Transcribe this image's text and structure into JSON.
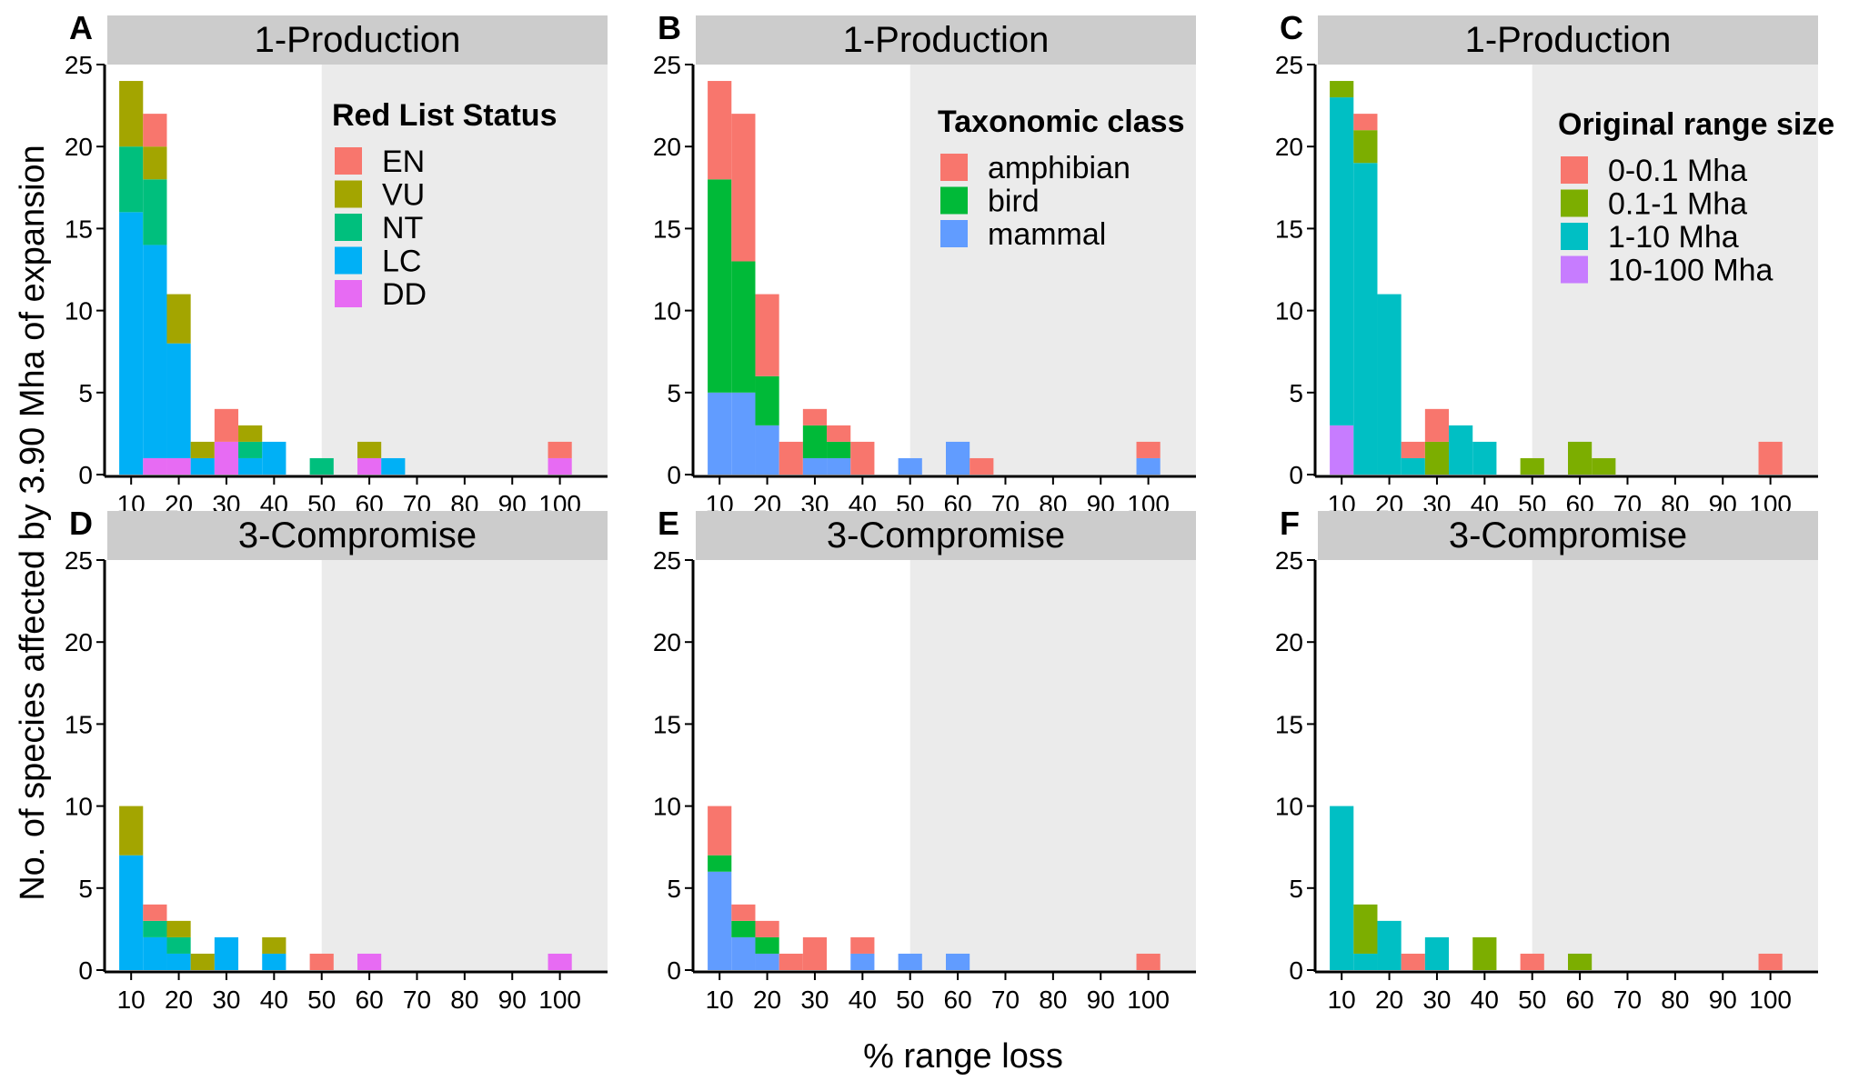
{
  "chart_data": {
    "type": "bar",
    "stacked": true,
    "xlabel": "% range loss",
    "ylabel": "No. of species affected by 3.90 Mha of expansion",
    "x_bins": [
      10,
      15,
      20,
      25,
      30,
      35,
      40,
      45,
      50,
      55,
      60,
      65,
      70,
      75,
      80,
      85,
      90,
      95,
      100
    ],
    "bin_width": 5,
    "xlim": [
      5,
      110
    ],
    "ylim": [
      0,
      25
    ],
    "x_ticks": [
      10,
      20,
      30,
      40,
      50,
      60,
      70,
      80,
      90,
      100
    ],
    "y_ticks": [
      0,
      5,
      10,
      15,
      20,
      25
    ],
    "shaded_region": {
      "from": 50,
      "to": 110,
      "color": "#ebebeb"
    },
    "legends": [
      {
        "title": "Red List Status",
        "items": [
          {
            "name": "EN",
            "color": "#F8766D"
          },
          {
            "name": "VU",
            "color": "#A3A500"
          },
          {
            "name": "NT",
            "color": "#00BF7D"
          },
          {
            "name": "LC",
            "color": "#00B0F6"
          },
          {
            "name": "DD",
            "color": "#E76BF3"
          }
        ]
      },
      {
        "title": "Taxonomic class",
        "items": [
          {
            "name": "amphibian",
            "color": "#F8766D"
          },
          {
            "name": "bird",
            "color": "#00BA38"
          },
          {
            "name": "mammal",
            "color": "#619CFF"
          }
        ]
      },
      {
        "title": "Original range size",
        "items": [
          {
            "name": "0-0.1 Mha",
            "color": "#F8766D"
          },
          {
            "name": "0.1-1 Mha",
            "color": "#7CAE00"
          },
          {
            "name": "1-10 Mha",
            "color": "#00BFC4"
          },
          {
            "name": "10-100 Mha",
            "color": "#C77CFF"
          }
        ]
      }
    ],
    "panels": [
      {
        "letter": "A",
        "strip": "1-Production",
        "legend": 0,
        "series": [
          {
            "name": "DD",
            "values": [
              0,
              1,
              1,
              0,
              2,
              0,
              0,
              0,
              0,
              0,
              1,
              0,
              0,
              0,
              0,
              0,
              0,
              0,
              1
            ]
          },
          {
            "name": "LC",
            "values": [
              16,
              13,
              7,
              1,
              0,
              1,
              2,
              0,
              0,
              0,
              0,
              1,
              0,
              0,
              0,
              0,
              0,
              0,
              0
            ]
          },
          {
            "name": "NT",
            "values": [
              4,
              4,
              0,
              0,
              0,
              1,
              0,
              0,
              1,
              0,
              0,
              0,
              0,
              0,
              0,
              0,
              0,
              0,
              0
            ]
          },
          {
            "name": "VU",
            "values": [
              4,
              2,
              3,
              1,
              0,
              1,
              0,
              0,
              0,
              0,
              1,
              0,
              0,
              0,
              0,
              0,
              0,
              0,
              0
            ]
          },
          {
            "name": "EN",
            "values": [
              0,
              2,
              0,
              0,
              2,
              0,
              0,
              0,
              0,
              0,
              0,
              0,
              0,
              0,
              0,
              0,
              0,
              0,
              1
            ]
          }
        ]
      },
      {
        "letter": "B",
        "strip": "1-Production",
        "legend": 1,
        "series": [
          {
            "name": "mammal",
            "values": [
              5,
              5,
              3,
              0,
              1,
              1,
              0,
              0,
              1,
              0,
              2,
              0,
              0,
              0,
              0,
              0,
              0,
              0,
              1
            ]
          },
          {
            "name": "bird",
            "values": [
              13,
              8,
              3,
              0,
              2,
              1,
              0,
              0,
              0,
              0,
              0,
              0,
              0,
              0,
              0,
              0,
              0,
              0,
              0
            ]
          },
          {
            "name": "amphibian",
            "values": [
              6,
              9,
              5,
              2,
              1,
              1,
              2,
              0,
              0,
              0,
              0,
              1,
              0,
              0,
              0,
              0,
              0,
              0,
              1
            ]
          }
        ]
      },
      {
        "letter": "C",
        "strip": "1-Production",
        "legend": 2,
        "series": [
          {
            "name": "10-100 Mha",
            "values": [
              3,
              0,
              0,
              0,
              0,
              0,
              0,
              0,
              0,
              0,
              0,
              0,
              0,
              0,
              0,
              0,
              0,
              0,
              0
            ]
          },
          {
            "name": "1-10 Mha",
            "values": [
              20,
              19,
              11,
              1,
              0,
              3,
              2,
              0,
              0,
              0,
              0,
              0,
              0,
              0,
              0,
              0,
              0,
              0,
              0
            ]
          },
          {
            "name": "0.1-1 Mha",
            "values": [
              1,
              2,
              0,
              0,
              2,
              0,
              0,
              0,
              1,
              0,
              2,
              1,
              0,
              0,
              0,
              0,
              0,
              0,
              0
            ]
          },
          {
            "name": "0-0.1 Mha",
            "values": [
              0,
              1,
              0,
              1,
              2,
              0,
              0,
              0,
              0,
              0,
              0,
              0,
              0,
              0,
              0,
              0,
              0,
              0,
              2
            ]
          }
        ]
      },
      {
        "letter": "D",
        "strip": "3-Compromise",
        "legend": null,
        "series": [
          {
            "name": "DD",
            "values": [
              0,
              0,
              0,
              0,
              0,
              0,
              0,
              0,
              0,
              0,
              1,
              0,
              0,
              0,
              0,
              0,
              0,
              0,
              1
            ]
          },
          {
            "name": "LC",
            "values": [
              7,
              2,
              1,
              0,
              2,
              0,
              1,
              0,
              0,
              0,
              0,
              0,
              0,
              0,
              0,
              0,
              0,
              0,
              0
            ]
          },
          {
            "name": "NT",
            "values": [
              0,
              1,
              1,
              0,
              0,
              0,
              0,
              0,
              0,
              0,
              0,
              0,
              0,
              0,
              0,
              0,
              0,
              0,
              0
            ]
          },
          {
            "name": "VU",
            "values": [
              3,
              0,
              1,
              1,
              0,
              0,
              1,
              0,
              0,
              0,
              0,
              0,
              0,
              0,
              0,
              0,
              0,
              0,
              0
            ]
          },
          {
            "name": "EN",
            "values": [
              0,
              1,
              0,
              0,
              0,
              0,
              0,
              0,
              1,
              0,
              0,
              0,
              0,
              0,
              0,
              0,
              0,
              0,
              0
            ]
          }
        ]
      },
      {
        "letter": "E",
        "strip": "3-Compromise",
        "legend": null,
        "series": [
          {
            "name": "mammal",
            "values": [
              6,
              2,
              1,
              0,
              0,
              0,
              1,
              0,
              1,
              0,
              1,
              0,
              0,
              0,
              0,
              0,
              0,
              0,
              0
            ]
          },
          {
            "name": "bird",
            "values": [
              1,
              1,
              1,
              0,
              0,
              0,
              0,
              0,
              0,
              0,
              0,
              0,
              0,
              0,
              0,
              0,
              0,
              0,
              0
            ]
          },
          {
            "name": "amphibian",
            "values": [
              3,
              1,
              1,
              1,
              2,
              0,
              1,
              0,
              0,
              0,
              0,
              0,
              0,
              0,
              0,
              0,
              0,
              0,
              1
            ]
          }
        ]
      },
      {
        "letter": "F",
        "strip": "3-Compromise",
        "legend": null,
        "series": [
          {
            "name": "10-100 Mha",
            "values": [
              0,
              0,
              0,
              0,
              0,
              0,
              0,
              0,
              0,
              0,
              0,
              0,
              0,
              0,
              0,
              0,
              0,
              0,
              0
            ]
          },
          {
            "name": "1-10 Mha",
            "values": [
              10,
              1,
              3,
              0,
              2,
              0,
              0,
              0,
              0,
              0,
              0,
              0,
              0,
              0,
              0,
              0,
              0,
              0,
              0
            ]
          },
          {
            "name": "0.1-1 Mha",
            "values": [
              0,
              3,
              0,
              0,
              0,
              0,
              2,
              0,
              0,
              0,
              1,
              0,
              0,
              0,
              0,
              0,
              0,
              0,
              0
            ]
          },
          {
            "name": "0-0.1 Mha",
            "values": [
              0,
              0,
              0,
              1,
              0,
              0,
              0,
              0,
              1,
              0,
              0,
              0,
              0,
              0,
              0,
              0,
              0,
              0,
              1
            ]
          }
        ]
      }
    ]
  }
}
